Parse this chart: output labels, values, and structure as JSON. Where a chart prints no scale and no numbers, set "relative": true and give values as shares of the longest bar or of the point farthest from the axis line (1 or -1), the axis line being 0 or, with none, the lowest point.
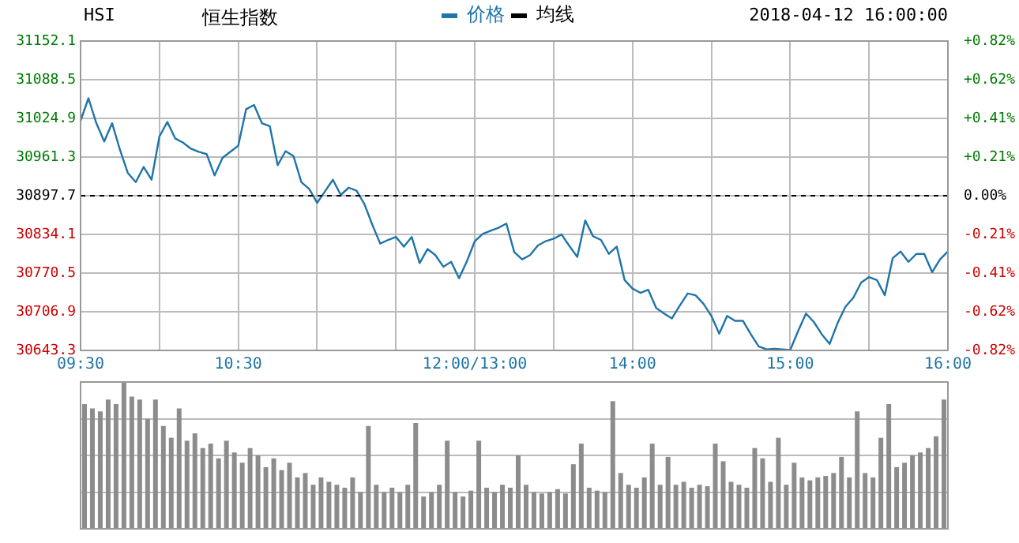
{
  "chart_data": [
    {
      "type": "line",
      "title": "HSI",
      "subtitle": "恒生指数",
      "annotations": [
        "2018-04-12 16:00:00"
      ],
      "legend": "top",
      "grid": true,
      "marker": "none",
      "line_style": "solid",
      "categories": [
        "09:30",
        null,
        null,
        null,
        null,
        null,
        null,
        null,
        null,
        null,
        null,
        null,
        null,
        null,
        null,
        null,
        null,
        null,
        null,
        null,
        "10:30",
        null,
        null,
        null,
        null,
        null,
        null,
        null,
        null,
        null,
        null,
        null,
        null,
        null,
        null,
        null,
        null,
        null,
        null,
        null,
        null,
        null,
        null,
        null,
        null,
        null,
        null,
        null,
        null,
        null,
        "12:00/13:00",
        null,
        null,
        null,
        null,
        null,
        null,
        null,
        null,
        null,
        null,
        null,
        null,
        null,
        null,
        null,
        null,
        null,
        null,
        null,
        "14:00",
        null,
        null,
        null,
        null,
        null,
        null,
        null,
        null,
        null,
        null,
        null,
        null,
        null,
        null,
        null,
        null,
        null,
        null,
        null,
        "15:00",
        null,
        null,
        null,
        null,
        null,
        null,
        null,
        null,
        null,
        null,
        null,
        null,
        null,
        null,
        null,
        null,
        null,
        null,
        null,
        "16:00"
      ],
      "ylim": [
        30643.3,
        31152.1
      ],
      "yticks": [
        30643.3,
        30706.9,
        30770.5,
        30834.1,
        30897.7,
        30961.3,
        31024.9,
        31088.5,
        31152.1
      ],
      "y2lim": [
        -0.8233,
        0.8233
      ],
      "y2ticks": [
        {
          "value": -0.8233,
          "label": "-0.82%"
        },
        {
          "value": -0.6175,
          "label": "-0.62%"
        },
        {
          "value": -0.4117,
          "label": "-0.41%"
        },
        {
          "value": -0.2058,
          "label": "-0.21%"
        },
        {
          "value": 0,
          "label": "0.00%"
        },
        {
          "value": 0.2058,
          "label": "+0.21%"
        },
        {
          "value": 0.4117,
          "label": "+0.41%"
        },
        {
          "value": 0.6175,
          "label": "+0.62%"
        },
        {
          "value": 0.8233,
          "label": "+0.82%"
        }
      ],
      "ref_lines": [
        {
          "axis": "y",
          "value": 30897.7,
          "color": "#000000",
          "line_style": "dashed"
        }
      ],
      "series": [
        {
          "name": "价格",
          "color": "#1f74a8",
          "values": [
            31021,
            31058,
            31017,
            30987,
            31017,
            30973,
            30935,
            30920,
            30945,
            30924,
            30995,
            31019,
            30992,
            30985,
            30975,
            30970,
            30966,
            30931,
            30960,
            30970,
            30980,
            31040,
            31047,
            31017,
            31012,
            30948,
            30971,
            30963,
            30920,
            30909,
            30886,
            30905,
            30924,
            30899,
            30911,
            30906,
            30884,
            30850,
            30819,
            30825,
            30830,
            30814,
            30830,
            30787,
            30810,
            30800,
            30781,
            30789,
            30762,
            30790,
            30823,
            30835,
            30840,
            30845,
            30852,
            30805,
            30793,
            30800,
            30816,
            30823,
            30827,
            30834,
            30815,
            30797,
            30857,
            30831,
            30825,
            30802,
            30814,
            30759,
            30745,
            30738,
            30743,
            30713,
            30704,
            30696,
            30717,
            30737,
            30734,
            30720,
            30700,
            30671,
            30700,
            30692,
            30692,
            30670,
            30650,
            30645,
            30646,
            30645,
            30644,
            30675,
            30704,
            30690,
            30670,
            30654,
            30688,
            30715,
            30730,
            30755,
            30764,
            30759,
            30734,
            30795,
            30806,
            30789,
            30802,
            30802,
            30772,
            30793,
            30806
          ]
        },
        {
          "name": "均线",
          "color": "#000000",
          "values": [
            null,
            null,
            null,
            null,
            null,
            null,
            null,
            null,
            null,
            null,
            null,
            null,
            null,
            null,
            null,
            null,
            null,
            null,
            null,
            null,
            null,
            null,
            null,
            null,
            null,
            null,
            null,
            null,
            null,
            null,
            null,
            null,
            null,
            null,
            null,
            null,
            null,
            null,
            null,
            null,
            null,
            null,
            null,
            null,
            null,
            null,
            null,
            null,
            null,
            null,
            null,
            null,
            null,
            null,
            null,
            null,
            null,
            null,
            null,
            null,
            null,
            null,
            null,
            null,
            null,
            null,
            null,
            null,
            null,
            null,
            null,
            null,
            null,
            null,
            null,
            null,
            null,
            null,
            null,
            null,
            null,
            null,
            null,
            null,
            null,
            null,
            null,
            null,
            null,
            null,
            null,
            null,
            null,
            null,
            null,
            null,
            null,
            null,
            null,
            null,
            null,
            null,
            null,
            null,
            null,
            null,
            null,
            null,
            null,
            null,
            null
          ]
        }
      ]
    },
    {
      "type": "bar",
      "relative": true,
      "grid": "y",
      "color": "#8c8c8c",
      "categories": [
        null,
        null,
        null,
        null,
        null,
        null,
        null,
        null,
        null,
        null,
        null,
        null,
        null,
        null,
        null,
        null,
        null,
        null,
        null,
        null,
        null,
        null,
        null,
        null,
        null,
        null,
        null,
        null,
        null,
        null,
        null,
        null,
        null,
        null,
        null,
        null,
        null,
        null,
        null,
        null,
        null,
        null,
        null,
        null,
        null,
        null,
        null,
        null,
        null,
        null,
        null,
        null,
        null,
        null,
        null,
        null,
        null,
        null,
        null,
        null,
        null,
        null,
        null,
        null,
        null,
        null,
        null,
        null,
        null,
        null,
        null,
        null,
        null,
        null,
        null,
        null,
        null,
        null,
        null,
        null,
        null,
        null,
        null,
        null,
        null,
        null,
        null,
        null,
        null,
        null,
        null,
        null,
        null,
        null,
        null,
        null,
        null,
        null,
        null,
        null,
        null,
        null,
        null,
        null,
        null,
        null,
        null,
        null,
        null,
        null
      ],
      "values": [
        0.85,
        0.82,
        0.8,
        0.88,
        0.85,
        1.0,
        0.9,
        0.88,
        0.75,
        0.88,
        0.7,
        0.62,
        0.82,
        0.6,
        0.65,
        0.55,
        0.58,
        0.48,
        0.6,
        0.52,
        0.45,
        0.55,
        0.5,
        0.42,
        0.48,
        0.4,
        0.45,
        0.35,
        0.38,
        0.3,
        0.35,
        0.32,
        0.3,
        0.28,
        0.35,
        0.25,
        0.7,
        0.3,
        0.25,
        0.28,
        0.25,
        0.3,
        0.72,
        0.22,
        0.25,
        0.3,
        0.6,
        0.25,
        0.22,
        0.26,
        0.6,
        0.28,
        0.25,
        0.3,
        0.28,
        0.5,
        0.3,
        0.25,
        0.24,
        0.25,
        0.27,
        0.24,
        0.44,
        0.58,
        0.28,
        0.26,
        0.25,
        0.87,
        0.38,
        0.3,
        0.28,
        0.35,
        0.58,
        0.3,
        0.49,
        0.3,
        0.32,
        0.28,
        0.3,
        0.29,
        0.58,
        0.46,
        0.32,
        0.3,
        0.28,
        0.55,
        0.48,
        0.32,
        0.62,
        0.3,
        0.45,
        0.35,
        0.33,
        0.35,
        0.36,
        0.38,
        0.49,
        0.35,
        0.8,
        0.38,
        0.35,
        0.62,
        0.85,
        0.42,
        0.45,
        0.5,
        0.52,
        0.55,
        0.63,
        0.88
      ]
    }
  ]
}
